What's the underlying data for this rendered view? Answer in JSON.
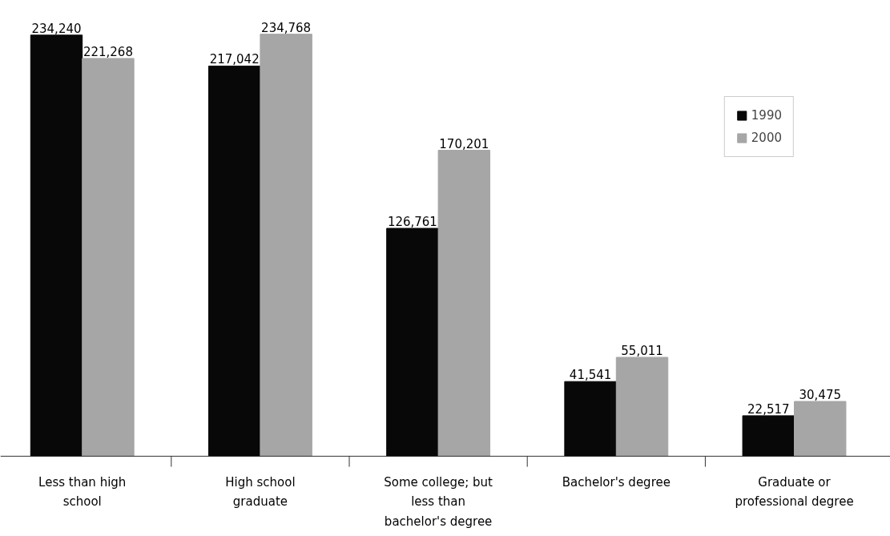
{
  "chart_data": {
    "type": "bar",
    "categories": [
      "Less than high school",
      "High school graduate",
      "Some college; but less than bachelor's degree",
      "Bachelor's degree",
      "Graduate or professional degree"
    ],
    "series": [
      {
        "name": "1990",
        "color": "#080808",
        "values": [
          234240,
          217042,
          126761,
          41541,
          22517
        ],
        "value_labels": [
          "234,240",
          "217,042",
          "126,761",
          "41,541",
          "22,517"
        ]
      },
      {
        "name": "2000",
        "color": "#a6a6a6",
        "values": [
          221268,
          234768,
          170201,
          55011,
          30475
        ],
        "value_labels": [
          "221,268",
          "234,768",
          "170,201",
          "55,011",
          "30,475"
        ]
      }
    ],
    "legend": "top right",
    "grid": false
  }
}
